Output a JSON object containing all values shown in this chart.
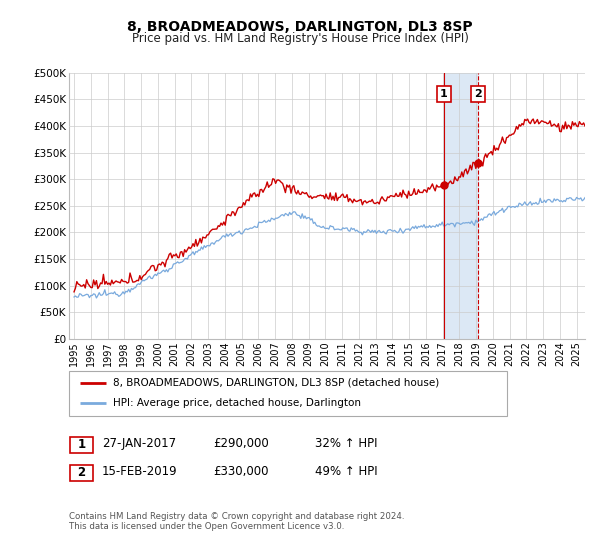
{
  "title": "8, BROADMEADOWS, DARLINGTON, DL3 8SP",
  "subtitle": "Price paid vs. HM Land Registry's House Price Index (HPI)",
  "ylim": [
    0,
    500000
  ],
  "yticks": [
    0,
    50000,
    100000,
    150000,
    200000,
    250000,
    300000,
    350000,
    400000,
    450000,
    500000
  ],
  "ytick_labels": [
    "£0",
    "£50K",
    "£100K",
    "£150K",
    "£200K",
    "£250K",
    "£300K",
    "£350K",
    "£400K",
    "£450K",
    "£500K"
  ],
  "xlim_start": 1994.7,
  "xlim_end": 2025.5,
  "xticks": [
    1995,
    1996,
    1997,
    1998,
    1999,
    2000,
    2001,
    2002,
    2003,
    2004,
    2005,
    2006,
    2007,
    2008,
    2009,
    2010,
    2011,
    2012,
    2013,
    2014,
    2015,
    2016,
    2017,
    2018,
    2019,
    2020,
    2021,
    2022,
    2023,
    2024,
    2025
  ],
  "sale1_x": 2017.077,
  "sale1_y": 290000,
  "sale2_x": 2019.12,
  "sale2_y": 330000,
  "vline1_x": 2017.077,
  "vline2_x": 2019.12,
  "shaded_region_color": "#dce8f5",
  "red_line_color": "#cc0000",
  "blue_line_color": "#7aaadd",
  "legend1_label": "8, BROADMEADOWS, DARLINGTON, DL3 8SP (detached house)",
  "legend2_label": "HPI: Average price, detached house, Darlington",
  "sale_point_color": "#cc0000",
  "sale_box_color": "#cc0000",
  "annotation1_date": "27-JAN-2017",
  "annotation1_price": "£290,000",
  "annotation1_hpi": "32% ↑ HPI",
  "annotation2_date": "15-FEB-2019",
  "annotation2_price": "£330,000",
  "annotation2_hpi": "49% ↑ HPI",
  "footnote1": "Contains HM Land Registry data © Crown copyright and database right 2024.",
  "footnote2": "This data is licensed under the Open Government Licence v3.0.",
  "background_color": "#ffffff",
  "grid_color": "#cccccc",
  "title_fontsize": 10,
  "subtitle_fontsize": 8.5
}
